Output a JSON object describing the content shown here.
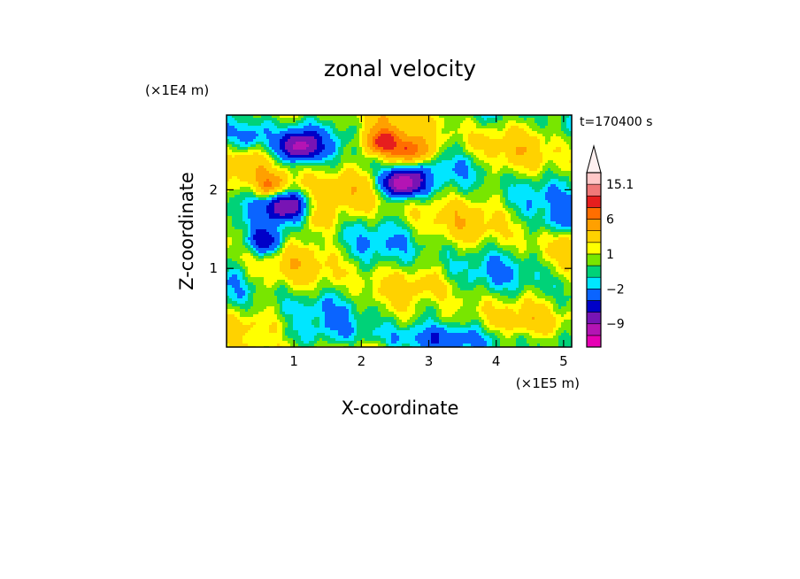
{
  "chart_data": {
    "type": "heatmap",
    "title": "zonal velocity",
    "xlabel": "X-coordinate",
    "ylabel": "Z-coordinate",
    "x_unit": "(×1E5 m)",
    "y_unit": "(×1E4 m)",
    "time_label": "t=170400 s",
    "xlim": [
      0,
      5.12
    ],
    "ylim": [
      0,
      2.95
    ],
    "x_ticks": [
      "1",
      "2",
      "3",
      "4",
      "5"
    ],
    "x_tick_values": [
      1,
      2,
      3,
      4,
      5
    ],
    "y_ticks": [
      "1",
      "2"
    ],
    "y_tick_values": [
      1,
      2
    ],
    "colorbar": {
      "levels": [
        -15,
        -12,
        -9,
        -6,
        -4,
        -2,
        -1,
        0,
        1,
        2,
        4,
        6,
        8,
        12,
        15.1
      ],
      "colors": [
        "#e600b4",
        "#b414b4",
        "#7814b4",
        "#0000c8",
        "#0a64ff",
        "#00e6ff",
        "#00d278",
        "#78e600",
        "#ffff00",
        "#ffd200",
        "#ffa000",
        "#ff6e00",
        "#e61e1e",
        "#f07878",
        "#ffc8c8"
      ],
      "labels": [
        "15.1",
        "6",
        "1",
        "−2",
        "−9"
      ],
      "label_values": [
        15.1,
        6,
        1,
        -2,
        -9
      ],
      "extend": "max"
    },
    "features": [
      {
        "x": 1.07,
        "z": 2.55,
        "value": -9
      },
      {
        "x": 2.6,
        "z": 2.08,
        "value": -12
      },
      {
        "x": 0.88,
        "z": 1.8,
        "value": -8
      },
      {
        "x": 0.55,
        "z": 1.33,
        "value": -6
      },
      {
        "x": 0.3,
        "z": 2.65,
        "value": -4
      },
      {
        "x": 2.3,
        "z": 2.6,
        "value": 8
      },
      {
        "x": 2.75,
        "z": 2.48,
        "value": 8
      },
      {
        "x": 0.65,
        "z": 2.05,
        "value": 5
      },
      {
        "x": 1.35,
        "z": 1.62,
        "value": 3
      },
      {
        "x": 3.0,
        "z": 0.55,
        "value": -2
      },
      {
        "x": 4.95,
        "z": 1.55,
        "value": -3
      },
      {
        "x": 3.7,
        "z": 2.3,
        "value": -1
      }
    ]
  }
}
